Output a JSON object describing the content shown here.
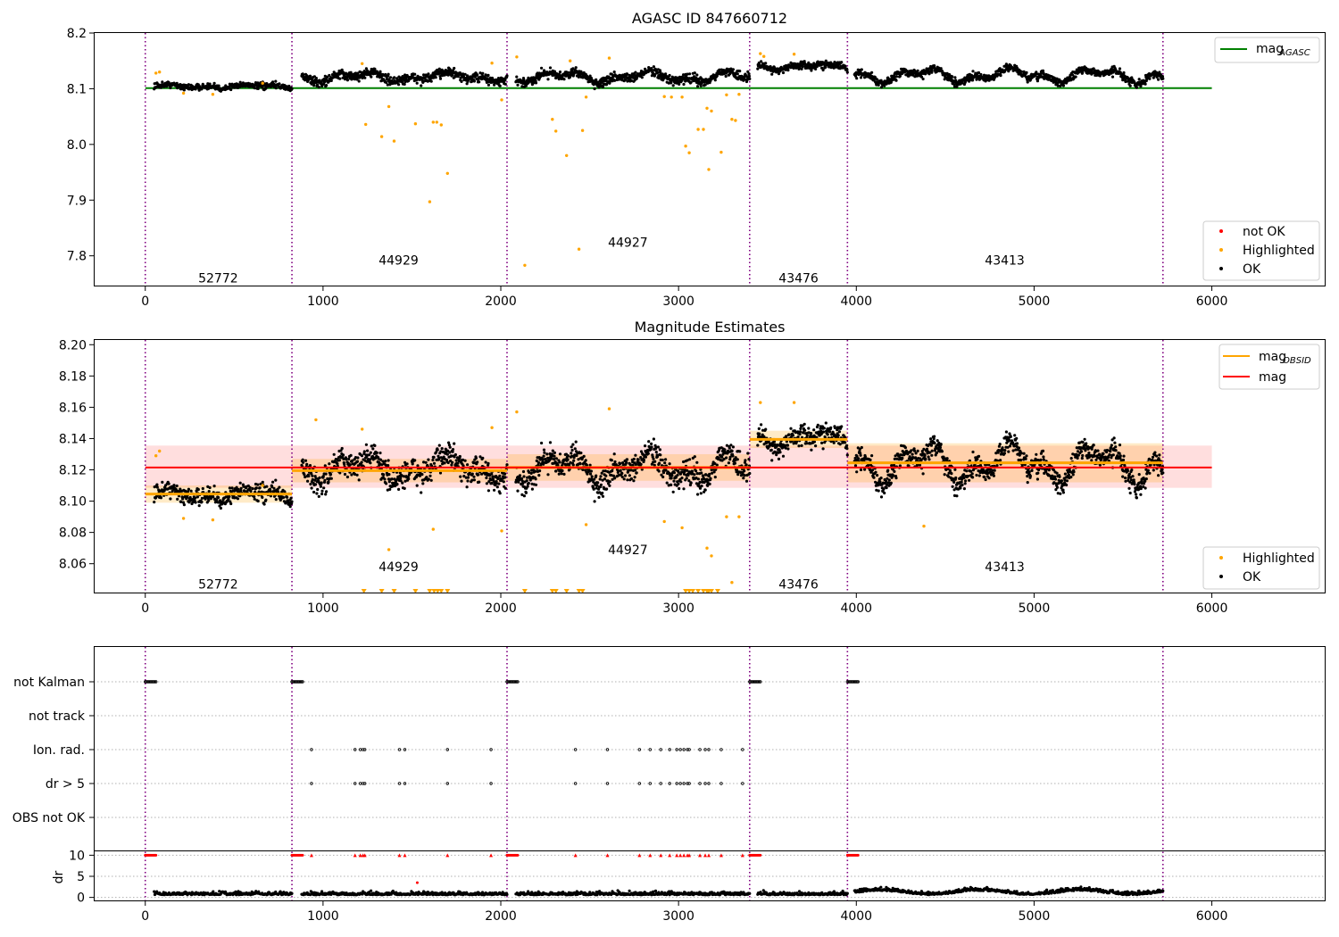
{
  "chart_data": [
    {
      "type": "scatter",
      "title": "AGASC ID 847660712",
      "xlim": [
        -290,
        6640
      ],
      "ylim": [
        7.745,
        8.2
      ],
      "xticks": [
        0,
        1000,
        2000,
        3000,
        4000,
        5000,
        6000
      ],
      "yticks": [
        7.8,
        7.9,
        8.0,
        8.1,
        8.2
      ],
      "ytick_labels": [
        "7.8",
        "7.9",
        "8.0",
        "8.1",
        "8.2"
      ],
      "obsid_boundaries": [
        0,
        825,
        2035,
        3400,
        3950,
        5725
      ],
      "obsid_labels": [
        {
          "text": "52772",
          "x": 410,
          "y": 7.76
        },
        {
          "text": "44929",
          "x": 1425,
          "y": 7.792
        },
        {
          "text": "44927",
          "x": 2715,
          "y": 7.824
        },
        {
          "text": "43476",
          "x": 3675,
          "y": 7.76
        },
        {
          "text": "43413",
          "x": 4835,
          "y": 7.792
        }
      ],
      "agasc_mag": 8.101,
      "agasc_mag_xrange": [
        0,
        6000
      ],
      "segments": [
        {
          "x0": 50,
          "x1": 825,
          "level": 8.104,
          "amp": 0.004,
          "scatter": 0.004,
          "n": 340
        },
        {
          "x0": 880,
          "x1": 2035,
          "level": 8.121,
          "amp": 0.01,
          "scatter": 0.006,
          "n": 560
        },
        {
          "x0": 2085,
          "x1": 3400,
          "level": 8.121,
          "amp": 0.012,
          "scatter": 0.006,
          "n": 640
        },
        {
          "x0": 3445,
          "x1": 3950,
          "level": 8.14,
          "amp": 0.006,
          "scatter": 0.005,
          "n": 260
        },
        {
          "x0": 3990,
          "x1": 5725,
          "level": 8.124,
          "amp": 0.015,
          "scatter": 0.005,
          "n": 860
        }
      ],
      "highlighted_points": [
        [
          60,
          8.128
        ],
        [
          80,
          8.13
        ],
        [
          215,
          8.092
        ],
        [
          380,
          8.09
        ],
        [
          660,
          8.11
        ],
        [
          1220,
          8.145
        ],
        [
          1240,
          8.036
        ],
        [
          1330,
          8.014
        ],
        [
          1370,
          8.068
        ],
        [
          1400,
          8.006
        ],
        [
          1520,
          8.037
        ],
        [
          1600,
          7.897
        ],
        [
          1620,
          8.04
        ],
        [
          1640,
          8.04
        ],
        [
          1665,
          8.035
        ],
        [
          1700,
          7.948
        ],
        [
          1950,
          8.146
        ],
        [
          2005,
          8.08
        ],
        [
          2090,
          8.157
        ],
        [
          2135,
          7.783
        ],
        [
          2290,
          8.045
        ],
        [
          2310,
          8.024
        ],
        [
          2370,
          7.98
        ],
        [
          2390,
          8.15
        ],
        [
          2440,
          7.812
        ],
        [
          2460,
          8.025
        ],
        [
          2480,
          8.085
        ],
        [
          2610,
          8.155
        ],
        [
          2920,
          8.086
        ],
        [
          2960,
          8.085
        ],
        [
          3020,
          8.085
        ],
        [
          3040,
          7.997
        ],
        [
          3060,
          7.985
        ],
        [
          3110,
          8.027
        ],
        [
          3140,
          8.027
        ],
        [
          3160,
          8.065
        ],
        [
          3170,
          7.955
        ],
        [
          3185,
          8.06
        ],
        [
          3240,
          7.986
        ],
        [
          3270,
          8.089
        ],
        [
          3300,
          8.045
        ],
        [
          3320,
          8.043
        ],
        [
          3340,
          8.09
        ],
        [
          3460,
          8.163
        ],
        [
          3480,
          8.158
        ],
        [
          3650,
          8.162
        ]
      ],
      "legend_top": [
        {
          "label": "mag",
          "sub": "AGASC",
          "color": "#008000"
        }
      ],
      "legend_bottom": [
        {
          "label": "not OK",
          "color": "#ff0000"
        },
        {
          "label": "Highlighted",
          "color": "#ffa500"
        },
        {
          "label": "OK",
          "color": "#000000"
        }
      ]
    },
    {
      "type": "scatter",
      "title": "Magnitude Estimates",
      "xlim": [
        -290,
        6640
      ],
      "ylim": [
        8.041,
        8.203
      ],
      "xticks": [
        0,
        1000,
        2000,
        3000,
        4000,
        5000,
        6000
      ],
      "yticks": [
        8.06,
        8.08,
        8.1,
        8.12,
        8.14,
        8.16,
        8.18,
        8.2
      ],
      "ytick_labels": [
        "8.06",
        "8.08",
        "8.10",
        "8.12",
        "8.14",
        "8.16",
        "8.18",
        "8.20"
      ],
      "obsid_boundaries": [
        0,
        825,
        2035,
        3400,
        3950,
        5725
      ],
      "obsid_labels": [
        {
          "text": "52772",
          "x": 410,
          "y": 8.047
        },
        {
          "text": "44929",
          "x": 1425,
          "y": 8.058
        },
        {
          "text": "44927",
          "x": 2715,
          "y": 8.069
        },
        {
          "text": "43476",
          "x": 3675,
          "y": 8.047
        },
        {
          "text": "43413",
          "x": 4835,
          "y": 8.058
        }
      ],
      "mag": 8.1215,
      "mag_band": [
        8.1085,
        8.1355
      ],
      "mag_xrange": [
        0,
        6000
      ],
      "obsid_mags": [
        {
          "x0": 0,
          "x1": 825,
          "mag": 8.1045,
          "band": [
            8.099,
            8.11
          ]
        },
        {
          "x0": 825,
          "x1": 2035,
          "mag": 8.1195,
          "band": [
            8.112,
            8.127
          ]
        },
        {
          "x0": 2035,
          "x1": 3400,
          "mag": 8.1215,
          "band": [
            8.113,
            8.13
          ]
        },
        {
          "x0": 3400,
          "x1": 3950,
          "mag": 8.1395,
          "band": [
            8.134,
            8.145
          ]
        },
        {
          "x0": 3950,
          "x1": 5725,
          "mag": 8.1245,
          "band": [
            8.112,
            8.137
          ]
        }
      ],
      "highlighted_points": [
        [
          60,
          8.129
        ],
        [
          80,
          8.132
        ],
        [
          215,
          8.089
        ],
        [
          380,
          8.088
        ],
        [
          660,
          8.11
        ],
        [
          960,
          8.152
        ],
        [
          1220,
          8.146
        ],
        [
          1370,
          8.069
        ],
        [
          1620,
          8.082
        ],
        [
          1950,
          8.147
        ],
        [
          2005,
          8.081
        ],
        [
          2090,
          8.157
        ],
        [
          2480,
          8.085
        ],
        [
          2610,
          8.159
        ],
        [
          2920,
          8.087
        ],
        [
          3020,
          8.083
        ],
        [
          3160,
          8.07
        ],
        [
          3185,
          8.065
        ],
        [
          3270,
          8.09
        ],
        [
          3300,
          8.048
        ],
        [
          3340,
          8.09
        ],
        [
          3460,
          8.163
        ],
        [
          3650,
          8.163
        ],
        [
          4380,
          8.084
        ]
      ],
      "clipped_points_x": [
        1230,
        1330,
        1400,
        1520,
        1600,
        1625,
        1645,
        1665,
        1700,
        2135,
        2290,
        2310,
        2370,
        2440,
        2460,
        3040,
        3060,
        3080,
        3110,
        3140,
        3160,
        3170,
        3185,
        3220
      ],
      "legend_top": [
        {
          "label": "mag",
          "sub": "OBSID",
          "color": "#ffa500"
        },
        {
          "label": "mag",
          "sub": "",
          "color": "#ff0000"
        }
      ],
      "legend_bottom": [
        {
          "label": "Highlighted",
          "color": "#ffa500"
        },
        {
          "label": "OK",
          "color": "#000000"
        }
      ]
    },
    {
      "type": "scatter",
      "xlim": [
        -290,
        6640
      ],
      "xticks": [
        0,
        1000,
        2000,
        3000,
        4000,
        5000,
        6000
      ],
      "obsid_boundaries": [
        0,
        825,
        2035,
        3400,
        3950,
        5725
      ],
      "flag_rows": [
        "not Kalman",
        "not track",
        "Ion. rad.",
        "dr > 5",
        "OBS not OK"
      ],
      "not_kalman_ranges": [
        [
          0,
          60
        ],
        [
          825,
          890
        ],
        [
          2035,
          2100
        ],
        [
          3400,
          3460
        ],
        [
          3950,
          4010
        ]
      ],
      "flag_x": [
        935,
        1180,
        1210,
        1225,
        1235,
        1430,
        1460,
        1700,
        1945,
        2420,
        2600,
        2780,
        2840,
        2900,
        2950,
        2990,
        3010,
        3030,
        3050,
        3060,
        3120,
        3150,
        3170,
        3240,
        3360
      ],
      "dr_yticks": [
        0,
        5,
        10
      ],
      "dr_ylim": [
        -0.5,
        10.5
      ],
      "ylabel": "dr",
      "dr_outlier": [
        1530,
        3.5
      ]
    }
  ]
}
